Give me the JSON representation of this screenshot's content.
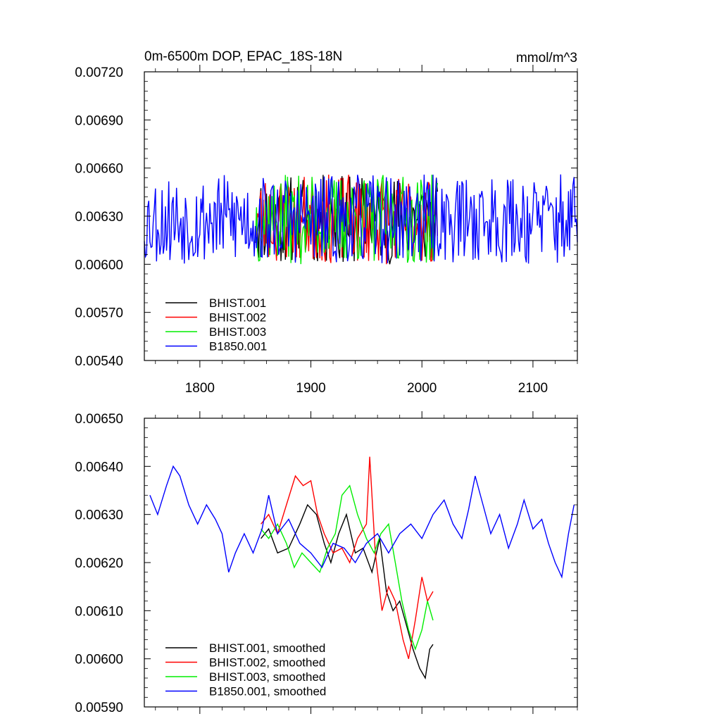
{
  "chart_data": [
    {
      "type": "line",
      "title": "0m-6500m DOP, EPAC_18S-18N",
      "units": "mmol/m^3",
      "xlim": [
        1750,
        2140
      ],
      "ylim": [
        0.0054,
        0.0072
      ],
      "x_ticks": [
        "1800",
        "1900",
        "2000",
        "2100"
      ],
      "y_ticks": [
        "0.00540",
        "0.00570",
        "0.00600",
        "0.00630",
        "0.00660",
        "0.00690",
        "0.00720"
      ],
      "legend": "bottom-left",
      "series": [
        {
          "name": "BHIST.001",
          "color": "#000000",
          "x_start": 1850,
          "x_end": 2014,
          "mean": 0.00628,
          "amp": 0.00028,
          "seed": 11
        },
        {
          "name": "BHIST.002",
          "color": "#ff0000",
          "x_start": 1850,
          "x_end": 2014,
          "mean": 0.00628,
          "amp": 0.00028,
          "seed": 23
        },
        {
          "name": "BHIST.003",
          "color": "#00ee00",
          "x_start": 1850,
          "x_end": 2014,
          "mean": 0.00628,
          "amp": 0.00028,
          "seed": 37
        },
        {
          "name": "B1850.001",
          "color": "#0000ff",
          "x_start": 1750,
          "x_end": 2140,
          "mean": 0.00628,
          "amp": 0.00028,
          "seed": 53
        }
      ]
    },
    {
      "type": "line",
      "title": "",
      "xlim": [
        1750,
        2140
      ],
      "ylim": [
        0.0059,
        0.0065
      ],
      "y_ticks": [
        "0.00590",
        "0.00600",
        "0.00610",
        "0.00620",
        "0.00630",
        "0.00640",
        "0.00650"
      ],
      "legend": "bottom-left",
      "series": [
        {
          "name": "BHIST.001, smoothed",
          "color": "#000000",
          "points": [
            [
              1855,
              0.00625
            ],
            [
              1862,
              0.00627
            ],
            [
              1870,
              0.00622
            ],
            [
              1880,
              0.00623
            ],
            [
              1890,
              0.00628
            ],
            [
              1897,
              0.00632
            ],
            [
              1905,
              0.0063
            ],
            [
              1912,
              0.00624
            ],
            [
              1918,
              0.0062
            ],
            [
              1925,
              0.00626
            ],
            [
              1932,
              0.0063
            ],
            [
              1940,
              0.00622
            ],
            [
              1947,
              0.00623
            ],
            [
              1955,
              0.00618
            ],
            [
              1962,
              0.00625
            ],
            [
              1968,
              0.00614
            ],
            [
              1974,
              0.0061
            ],
            [
              1980,
              0.00612
            ],
            [
              1986,
              0.00607
            ],
            [
              1992,
              0.00602
            ],
            [
              1998,
              0.00598
            ],
            [
              2003,
              0.00596
            ],
            [
              2007,
              0.00602
            ],
            [
              2010,
              0.00603
            ]
          ]
        },
        {
          "name": "BHIST.002, smoothed",
          "color": "#ff0000",
          "points": [
            [
              1855,
              0.00628
            ],
            [
              1862,
              0.0063
            ],
            [
              1870,
              0.00626
            ],
            [
              1878,
              0.00632
            ],
            [
              1886,
              0.00638
            ],
            [
              1893,
              0.00636
            ],
            [
              1900,
              0.00637
            ],
            [
              1906,
              0.0063
            ],
            [
              1912,
              0.00626
            ],
            [
              1920,
              0.00622
            ],
            [
              1928,
              0.00623
            ],
            [
              1935,
              0.0062
            ],
            [
              1942,
              0.00625
            ],
            [
              1950,
              0.00628
            ],
            [
              1953,
              0.00642
            ],
            [
              1958,
              0.00622
            ],
            [
              1964,
              0.0061
            ],
            [
              1970,
              0.00615
            ],
            [
              1976,
              0.00612
            ],
            [
              1983,
              0.00604
            ],
            [
              1988,
              0.006
            ],
            [
              1994,
              0.00608
            ],
            [
              2000,
              0.00617
            ],
            [
              2005,
              0.00612
            ],
            [
              2010,
              0.00614
            ]
          ]
        },
        {
          "name": "BHIST.003, smoothed",
          "color": "#00ee00",
          "points": [
            [
              1855,
              0.00627
            ],
            [
              1862,
              0.00625
            ],
            [
              1870,
              0.00628
            ],
            [
              1878,
              0.00624
            ],
            [
              1885,
              0.00619
            ],
            [
              1892,
              0.00622
            ],
            [
              1900,
              0.0062
            ],
            [
              1908,
              0.00618
            ],
            [
              1915,
              0.00623
            ],
            [
              1922,
              0.00626
            ],
            [
              1928,
              0.00634
            ],
            [
              1935,
              0.00636
            ],
            [
              1942,
              0.0063
            ],
            [
              1950,
              0.00625
            ],
            [
              1957,
              0.00622
            ],
            [
              1963,
              0.00626
            ],
            [
              1970,
              0.00628
            ],
            [
              1976,
              0.0062
            ],
            [
              1982,
              0.00612
            ],
            [
              1988,
              0.00606
            ],
            [
              1994,
              0.00602
            ],
            [
              2000,
              0.00606
            ],
            [
              2005,
              0.00612
            ],
            [
              2010,
              0.00608
            ]
          ]
        },
        {
          "name": "B1850.001, smoothed",
          "color": "#0000ff",
          "points": [
            [
              1755,
              0.00634
            ],
            [
              1762,
              0.0063
            ],
            [
              1770,
              0.00636
            ],
            [
              1776,
              0.0064
            ],
            [
              1782,
              0.00638
            ],
            [
              1790,
              0.00632
            ],
            [
              1798,
              0.00628
            ],
            [
              1806,
              0.00632
            ],
            [
              1814,
              0.00629
            ],
            [
              1820,
              0.00626
            ],
            [
              1826,
              0.00618
            ],
            [
              1832,
              0.00622
            ],
            [
              1840,
              0.00626
            ],
            [
              1848,
              0.00622
            ],
            [
              1856,
              0.00627
            ],
            [
              1862,
              0.00634
            ],
            [
              1870,
              0.00626
            ],
            [
              1880,
              0.00629
            ],
            [
              1890,
              0.00624
            ],
            [
              1900,
              0.00622
            ],
            [
              1910,
              0.00619
            ],
            [
              1920,
              0.00624
            ],
            [
              1930,
              0.00623
            ],
            [
              1940,
              0.0062
            ],
            [
              1950,
              0.00624
            ],
            [
              1960,
              0.00626
            ],
            [
              1970,
              0.00622
            ],
            [
              1980,
              0.00626
            ],
            [
              1990,
              0.00628
            ],
            [
              2000,
              0.00625
            ],
            [
              2010,
              0.0063
            ],
            [
              2020,
              0.00633
            ],
            [
              2028,
              0.00628
            ],
            [
              2036,
              0.00625
            ],
            [
              2042,
              0.00631
            ],
            [
              2048,
              0.00638
            ],
            [
              2055,
              0.00632
            ],
            [
              2062,
              0.00626
            ],
            [
              2070,
              0.0063
            ],
            [
              2078,
              0.00623
            ],
            [
              2086,
              0.00628
            ],
            [
              2092,
              0.00633
            ],
            [
              2100,
              0.00627
            ],
            [
              2108,
              0.00629
            ],
            [
              2114,
              0.00624
            ],
            [
              2120,
              0.0062
            ],
            [
              2126,
              0.00617
            ],
            [
              2132,
              0.00626
            ],
            [
              2137,
              0.00632
            ]
          ]
        }
      ]
    }
  ]
}
